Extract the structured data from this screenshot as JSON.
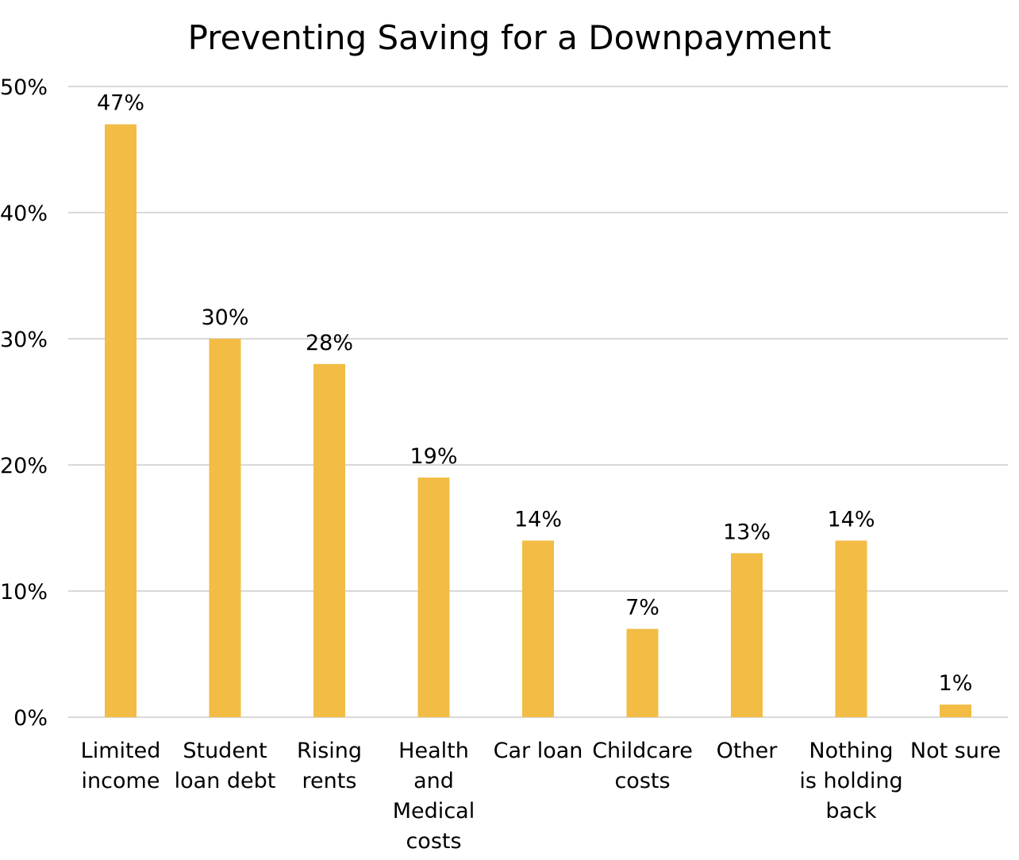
{
  "chart_data": {
    "type": "bar",
    "title": "Preventing Saving for a Downpayment",
    "xlabel": "",
    "ylabel": "",
    "categories": [
      [
        "Limited",
        "income"
      ],
      [
        "Student",
        "loan debt"
      ],
      [
        "Rising",
        "rents"
      ],
      [
        "Health",
        "and",
        "Medical",
        "costs"
      ],
      [
        "Car loan"
      ],
      [
        "Childcare",
        "costs"
      ],
      [
        "Other"
      ],
      [
        "Nothing",
        "is holding",
        "back"
      ],
      [
        "Not sure"
      ]
    ],
    "values": [
      47,
      30,
      28,
      19,
      14,
      7,
      13,
      14,
      1
    ],
    "value_labels": [
      "47%",
      "30%",
      "28%",
      "19%",
      "14%",
      "7%",
      "13%",
      "14%",
      "1%"
    ],
    "ylim": [
      0,
      50
    ],
    "yticks": [
      0,
      10,
      20,
      30,
      40,
      50
    ],
    "ytick_labels": [
      "0%",
      "10%",
      "20%",
      "30%",
      "40%",
      "50%"
    ],
    "grid": true,
    "legend": "none",
    "colors": {
      "bar": "#F2BC45",
      "grid": "#D9D9D9"
    }
  }
}
